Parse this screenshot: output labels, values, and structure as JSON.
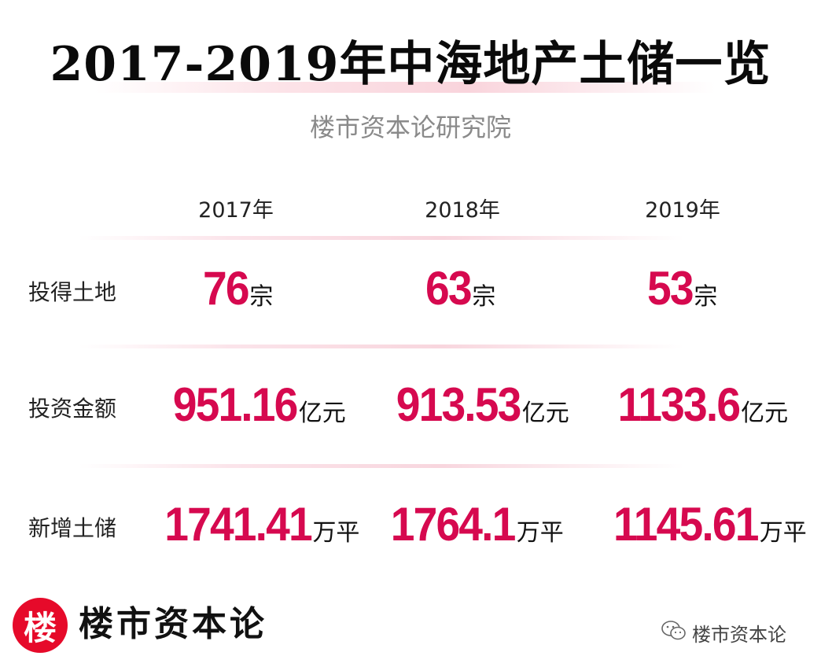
{
  "title": "2017-2019年中海地产土储一览",
  "subtitle": "楼市资本论研究院",
  "chart_data": {
    "type": "table",
    "columns": [
      "2017年",
      "2018年",
      "2019年"
    ],
    "rows": [
      {
        "label": "投得土地",
        "values": [
          "76",
          "63",
          "53"
        ],
        "unit": "宗"
      },
      {
        "label": "投资金额",
        "values": [
          "951.16",
          "913.53",
          "1133.6"
        ],
        "unit": "亿元"
      },
      {
        "label": "新增土储",
        "values": [
          "1741.41",
          "1764.1",
          "1145.61"
        ],
        "unit": "万平"
      }
    ]
  },
  "footer": {
    "logo_char": "楼",
    "brand": "楼市资本论",
    "wechat_icon": "wechat-icon",
    "wechat_label": "楼市资本论"
  },
  "colors": {
    "value": "#d6094f",
    "logo": "#e60a2a"
  }
}
